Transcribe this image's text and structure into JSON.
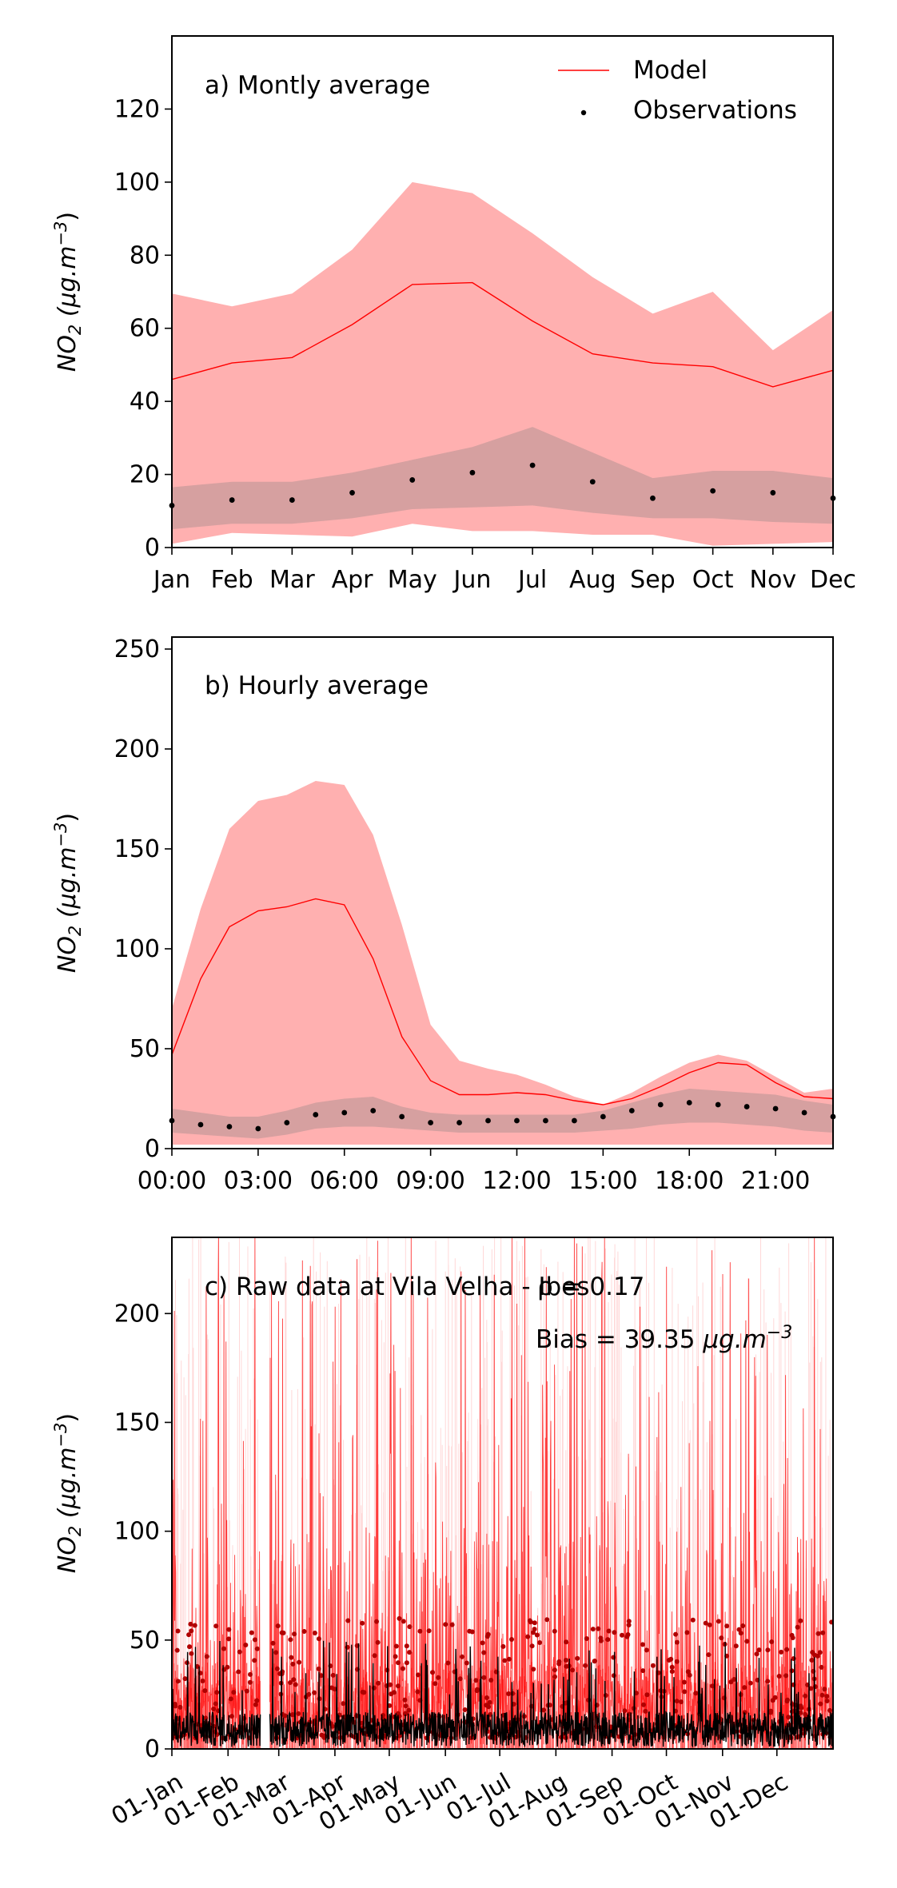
{
  "chart_data": [
    {
      "type": "line",
      "title": "a) Montly average",
      "ylabel_main": "NO",
      "ylabel_sub": "2",
      "ylabel_unit": " (μg.m",
      "ylabel_exp": "−3",
      "ylim": [
        0,
        140
      ],
      "yticks": [
        0,
        20,
        40,
        60,
        80,
        100,
        120
      ],
      "categories": [
        "Jan",
        "Feb",
        "Mar",
        "Apr",
        "May",
        "Jun",
        "Jul",
        "Aug",
        "Sep",
        "Oct",
        "Nov",
        "Dec"
      ],
      "legend": {
        "placement": "top-right",
        "model": "Model",
        "observations": "Observations"
      },
      "model_mean": [
        46,
        50.5,
        52,
        61,
        72,
        72.5,
        62,
        53,
        50.5,
        49.5,
        44,
        48.5
      ],
      "model_upper": [
        69.5,
        66,
        69.5,
        81.5,
        100,
        97,
        86,
        74,
        64,
        70,
        54,
        65
      ],
      "model_lower": [
        1,
        4,
        3.5,
        3,
        6.5,
        4.5,
        4.5,
        3.5,
        3.5,
        0.5,
        1,
        1.5
      ],
      "obs_mean": [
        11.5,
        13,
        13,
        15,
        18.5,
        20.5,
        22.5,
        18,
        13.5,
        15.5,
        15,
        13.5
      ],
      "obs_upper": [
        16.5,
        18,
        18,
        20.5,
        24,
        27.5,
        33,
        26,
        19,
        21,
        21,
        19
      ],
      "obs_lower": [
        5,
        6.5,
        6.5,
        8,
        10.5,
        11,
        11.5,
        9.5,
        8,
        8,
        7,
        6.5
      ]
    },
    {
      "type": "line",
      "title": "b) Hourly average",
      "ylim": [
        0,
        256
      ],
      "yticks": [
        0,
        50,
        100,
        150,
        200,
        250
      ],
      "xticks": [
        "00:00",
        "03:00",
        "06:00",
        "09:00",
        "12:00",
        "15:00",
        "18:00",
        "21:00"
      ],
      "hours": [
        0,
        1,
        2,
        3,
        4,
        5,
        6,
        7,
        8,
        9,
        10,
        11,
        12,
        13,
        14,
        15,
        16,
        17,
        18,
        19,
        20,
        21,
        22,
        23
      ],
      "model_mean": [
        47,
        85,
        111,
        119,
        121,
        125,
        122,
        95,
        56,
        34,
        27,
        27,
        28,
        27,
        24,
        22,
        25,
        31,
        38,
        43,
        42,
        33,
        26,
        25
      ],
      "model_upper": [
        70,
        120,
        160,
        174,
        177,
        184,
        182,
        157,
        112,
        62,
        44,
        40,
        37,
        32,
        26,
        22,
        28,
        36,
        43,
        47,
        44,
        36,
        28,
        30
      ],
      "model_lower": [
        2,
        2,
        2,
        2,
        2,
        2,
        2,
        2,
        2,
        2,
        2,
        2,
        2,
        2,
        2,
        2,
        2,
        2,
        2,
        2,
        2,
        2,
        2,
        2
      ],
      "obs_mean": [
        14,
        12,
        11,
        10,
        13,
        17,
        18,
        19,
        16,
        13,
        13,
        14,
        14,
        14,
        14,
        16,
        19,
        22,
        23,
        22,
        21,
        20,
        18,
        16
      ],
      "obs_upper": [
        20,
        18,
        16,
        16,
        19,
        23,
        25,
        26,
        21,
        18,
        17,
        17,
        17,
        17,
        17,
        19,
        23,
        27,
        30,
        29,
        28,
        27,
        24,
        22
      ],
      "obs_lower": [
        8,
        7,
        6,
        5,
        7,
        10,
        11,
        11,
        10,
        9,
        8,
        8,
        8,
        8,
        8,
        9,
        10,
        12,
        13,
        13,
        12,
        11,
        9,
        8
      ]
    },
    {
      "type": "line",
      "title": "c) Raw data at Vila Velha - Ibes",
      "overlap_text": "ρ = 0.17",
      "bias_text": "Bias = 39.35 ",
      "bias_unit": "μg.m",
      "bias_exp": "−3",
      "ylim": [
        0,
        235
      ],
      "yticks": [
        0,
        50,
        100,
        150,
        200
      ],
      "xticks": [
        "01-Jan",
        "01-Feb",
        "01-Mar",
        "01-Apr",
        "01-May",
        "01-Jun",
        "01-Jul",
        "01-Aug",
        "01-Sep",
        "01-Oct",
        "01-Nov",
        "01-Dec"
      ],
      "xtick_days": [
        0,
        31,
        59,
        90,
        120,
        151,
        181,
        212,
        243,
        273,
        304,
        334
      ],
      "days_in_year": 365,
      "gap_days": [
        49,
        54
      ],
      "model_peak": 235,
      "obs_peak": 60
    }
  ],
  "colors": {
    "model": "#ff0000",
    "model_band": "#ffb0b0",
    "obs": "#000000",
    "obs_band": "#d6a0a0"
  }
}
